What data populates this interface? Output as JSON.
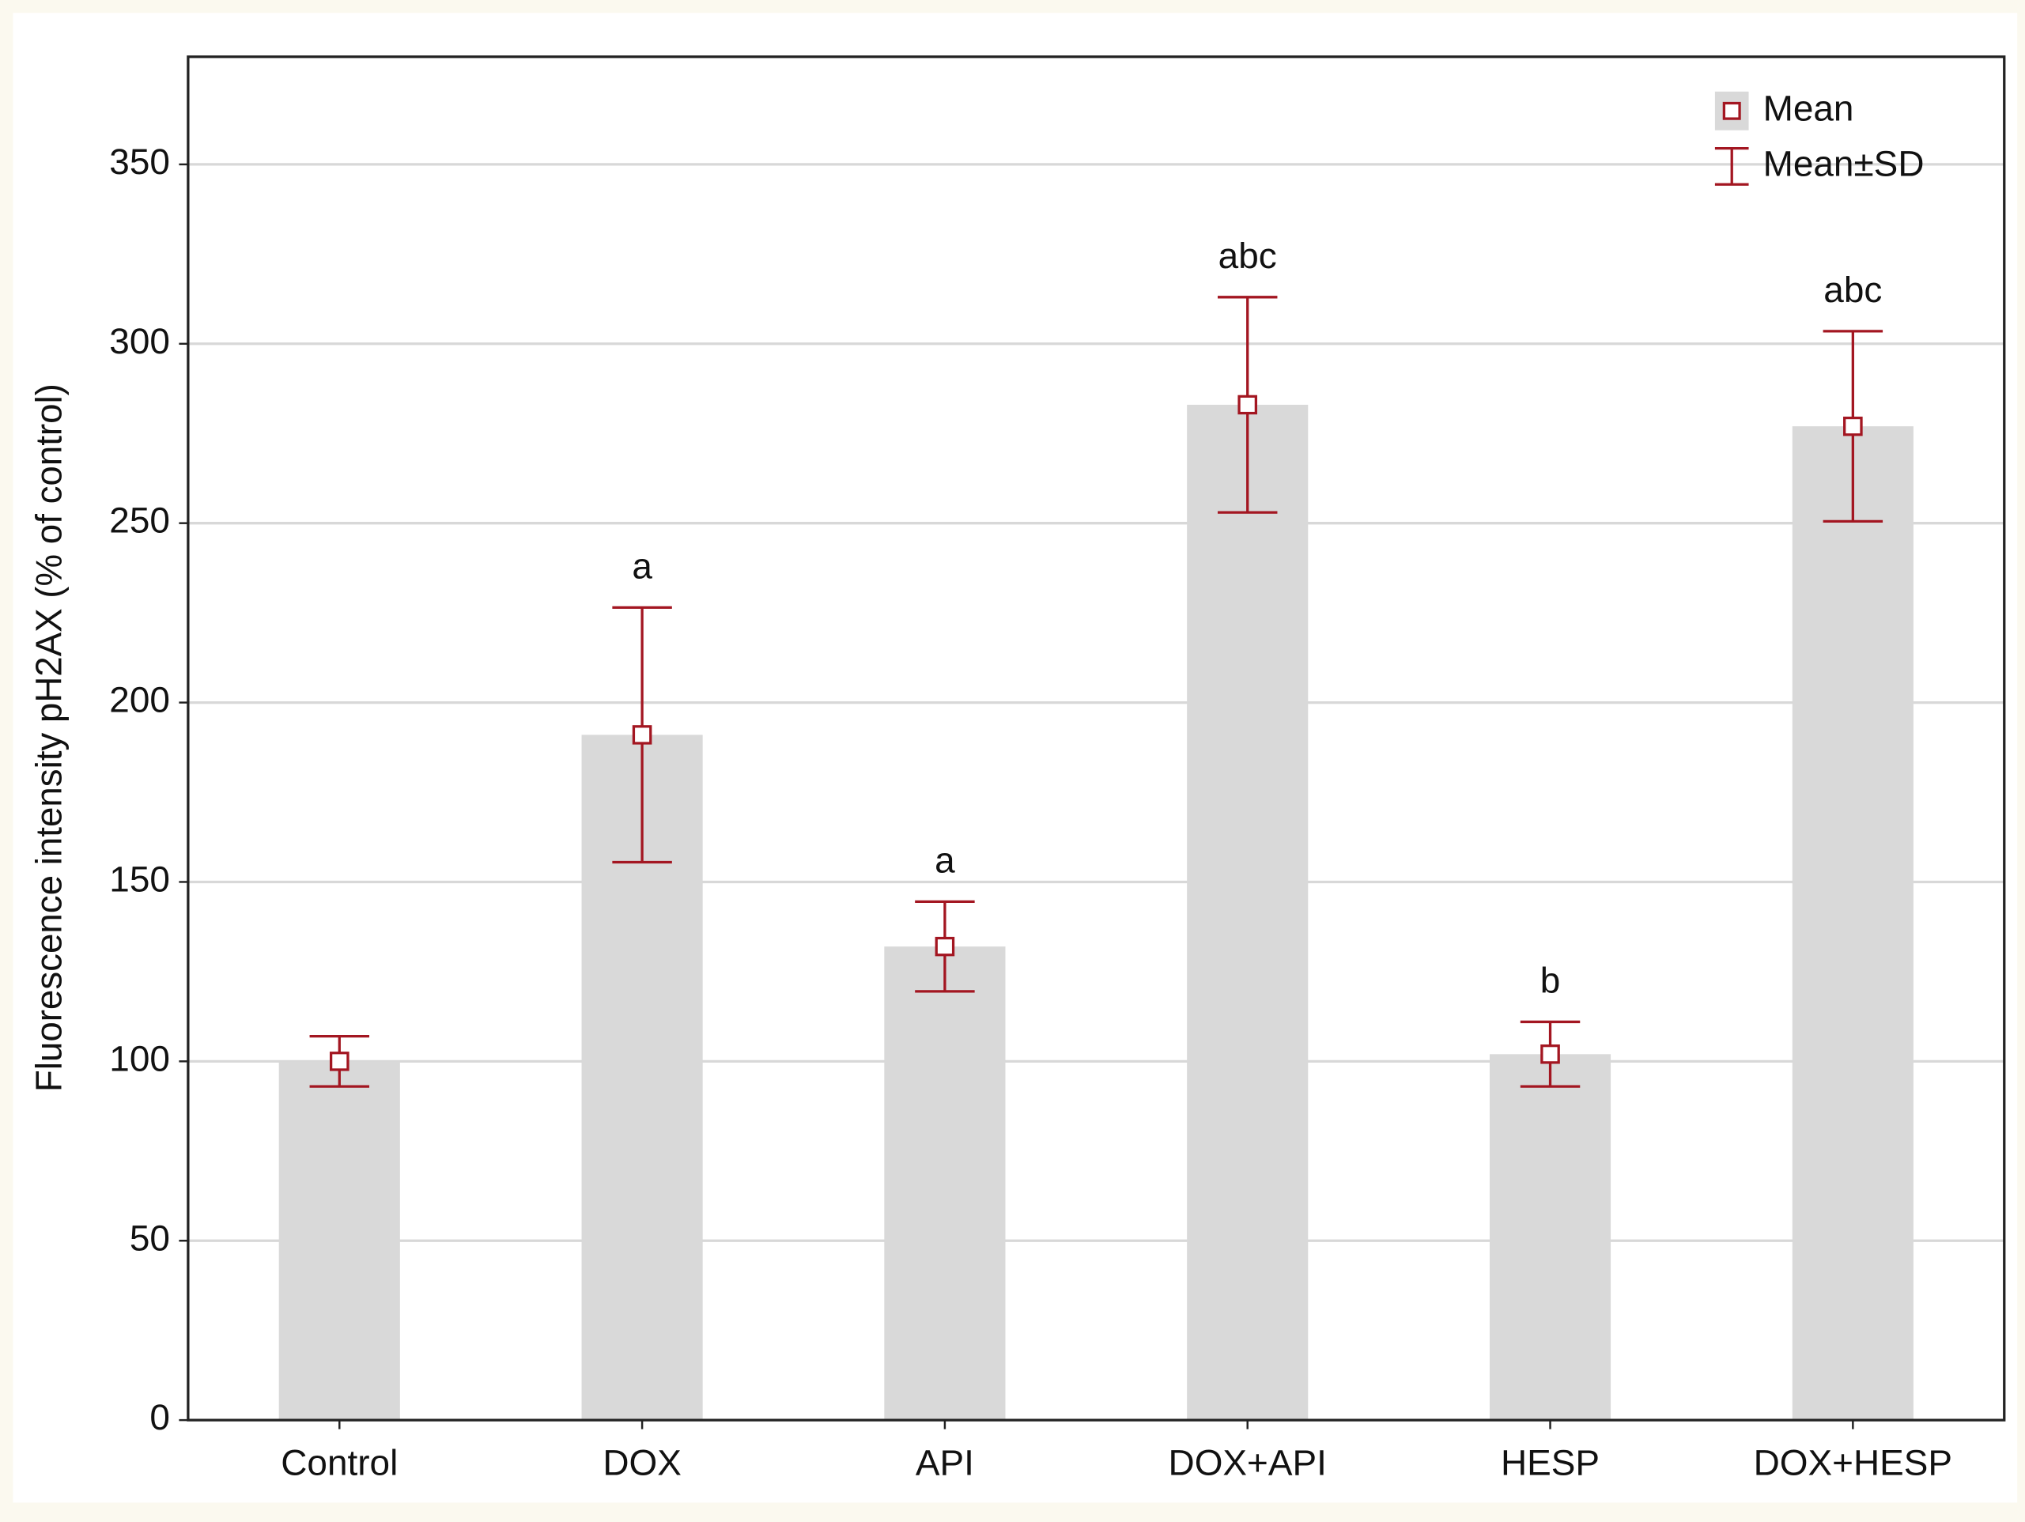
{
  "chart_data": {
    "type": "bar",
    "ylabel": "Fluorescence intensity pH2AX (% of control)",
    "categories": [
      "Control",
      "DOX",
      "API",
      "DOX+API",
      "HESP",
      "DOX+HESP"
    ],
    "values": [
      100,
      191,
      132,
      283,
      102,
      277
    ],
    "errors": [
      7,
      35.5,
      12.5,
      30,
      9,
      26.5
    ],
    "labels": [
      null,
      "a",
      "a",
      "abc",
      "b",
      "abc"
    ],
    "color": "#d9d9d9",
    "marker_color": "#a31621",
    "ylim": [
      0,
      380
    ],
    "yticks": [
      0,
      50,
      100,
      150,
      200,
      250,
      300,
      350
    ],
    "grid": true,
    "legend": {
      "mean": "Mean",
      "sd": "Mean±SD",
      "position": "upper right"
    }
  }
}
